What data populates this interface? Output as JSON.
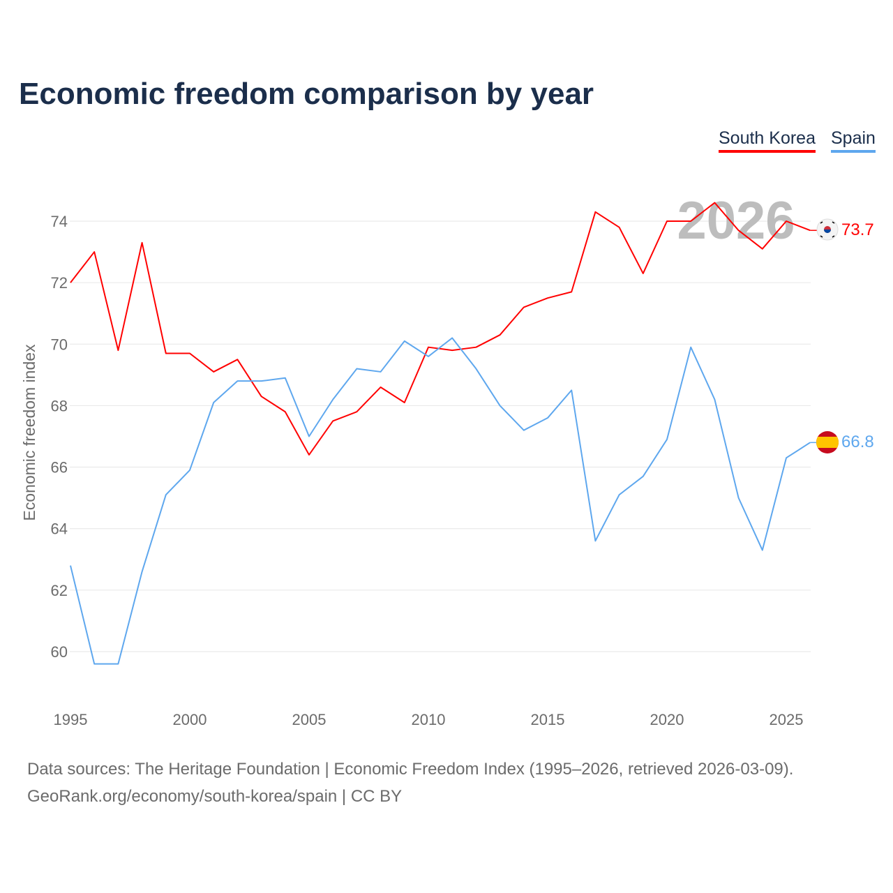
{
  "chart_data": {
    "type": "line",
    "title": "Economic freedom comparison by year",
    "xlabel": "",
    "ylabel": "Economic freedom index",
    "xlim": [
      1995,
      2026
    ],
    "ylim": [
      58.5,
      75
    ],
    "x_ticks": [
      "1995",
      "2000",
      "2005",
      "2010",
      "2015",
      "2020",
      "2025"
    ],
    "y_ticks": [
      "60",
      "62",
      "64",
      "66",
      "68",
      "70",
      "72",
      "74"
    ],
    "grid": true,
    "legend_placement": "top-right",
    "highlight_year": "2026",
    "x": [
      1995,
      1996,
      1997,
      1998,
      1999,
      2000,
      2001,
      2002,
      2003,
      2004,
      2005,
      2006,
      2007,
      2008,
      2009,
      2010,
      2011,
      2012,
      2013,
      2014,
      2015,
      2016,
      2017,
      2018,
      2019,
      2020,
      2021,
      2022,
      2023,
      2024,
      2025,
      2026
    ],
    "series": [
      {
        "name": "South Korea",
        "color": "#ff0000",
        "end_label": "73.7",
        "values": [
          72.0,
          73.0,
          69.8,
          73.3,
          69.7,
          69.7,
          69.1,
          69.5,
          68.3,
          67.8,
          66.4,
          67.5,
          67.8,
          68.6,
          68.1,
          69.9,
          69.8,
          69.9,
          70.3,
          71.2,
          71.5,
          71.7,
          74.3,
          73.8,
          72.3,
          74.0,
          74.0,
          74.6,
          73.7,
          73.1,
          74.0,
          73.7
        ]
      },
      {
        "name": "Spain",
        "color": "#5ea7ee",
        "end_label": "66.8",
        "values": [
          62.8,
          59.6,
          59.6,
          62.6,
          65.1,
          65.9,
          68.1,
          68.8,
          68.8,
          68.9,
          67.0,
          68.2,
          69.2,
          69.1,
          70.1,
          69.6,
          70.2,
          69.2,
          68.0,
          67.2,
          67.6,
          68.5,
          63.6,
          65.1,
          65.7,
          66.9,
          69.9,
          68.2,
          65.0,
          63.3,
          66.3,
          66.8
        ]
      }
    ]
  },
  "footer": {
    "line1": "Data sources: The Heritage Foundation | Economic Freedom Index (1995–2026, retrieved 2026-03-09).",
    "line2": "GeoRank.org/economy/south-korea/spain | CC BY"
  }
}
